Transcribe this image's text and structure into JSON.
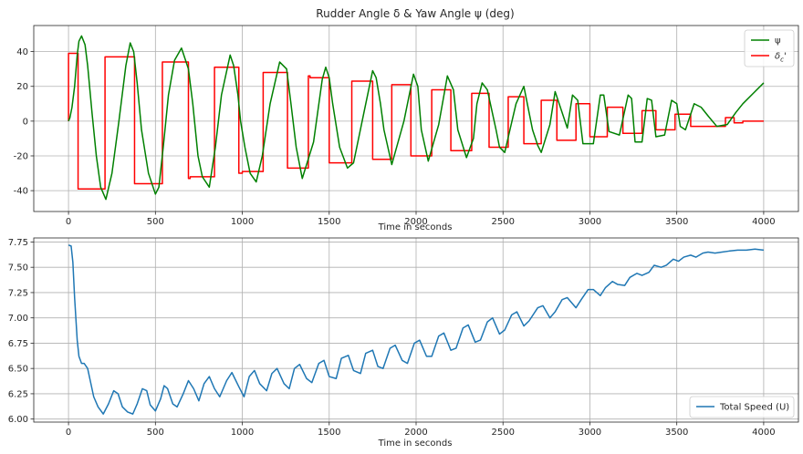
{
  "chart_data": [
    {
      "type": "line",
      "title": "Rudder Angle δ & Yaw Angle ψ (deg)",
      "xlabel": "Time in seconds",
      "ylabel": "",
      "xlim": [
        -200,
        4200
      ],
      "ylim": [
        -52,
        55
      ],
      "xticks": [
        0,
        500,
        1000,
        1500,
        2000,
        2500,
        3000,
        3500,
        4000
      ],
      "yticks": [
        -40,
        -20,
        0,
        20,
        40
      ],
      "grid": true,
      "legend": "top-right",
      "series": [
        {
          "name": "ψ",
          "color": "#008000",
          "x": [
            0,
            8,
            20,
            35,
            50,
            60,
            75,
            95,
            110,
            135,
            160,
            185,
            215,
            250,
            290,
            330,
            355,
            375,
            395,
            420,
            460,
            500,
            520,
            545,
            555,
            575,
            610,
            650,
            690,
            715,
            745,
            770,
            810,
            845,
            880,
            930,
            950,
            975,
            990,
            1015,
            1045,
            1080,
            1115,
            1160,
            1215,
            1255,
            1280,
            1310,
            1345,
            1410,
            1460,
            1480,
            1500,
            1520,
            1560,
            1605,
            1640,
            1700,
            1750,
            1770,
            1795,
            1815,
            1860,
            1930,
            1985,
            2010,
            2030,
            2070,
            2130,
            2180,
            2215,
            2240,
            2290,
            2330,
            2350,
            2380,
            2410,
            2460,
            2480,
            2510,
            2540,
            2575,
            2620,
            2670,
            2700,
            2720,
            2770,
            2800,
            2870,
            2900,
            2930,
            2960,
            3020,
            3060,
            3080,
            3110,
            3170,
            3220,
            3240,
            3260,
            3300,
            3330,
            3355,
            3380,
            3430,
            3470,
            3500,
            3520,
            3550,
            3600,
            3640,
            3680,
            3730,
            3790,
            3840,
            3880,
            3940,
            4000
          ],
          "values": [
            0,
            2,
            8,
            20,
            38,
            46,
            49,
            44,
            32,
            5,
            -20,
            -38,
            -45,
            -30,
            0,
            32,
            45,
            40,
            22,
            -5,
            -30,
            -42,
            -38,
            -15,
            -5,
            15,
            35,
            42,
            30,
            10,
            -20,
            -32,
            -38,
            -15,
            15,
            38,
            32,
            15,
            0,
            -15,
            -30,
            -35,
            -20,
            10,
            34,
            30,
            10,
            -15,
            -33,
            -12,
            24,
            31,
            25,
            10,
            -15,
            -27,
            -24,
            5,
            29,
            25,
            10,
            -5,
            -25,
            0,
            27,
            20,
            -5,
            -23,
            -2,
            26,
            18,
            -5,
            -21,
            -10,
            10,
            22,
            18,
            -5,
            -15,
            -18,
            -5,
            10,
            20,
            -5,
            -14,
            -18,
            -2,
            17,
            -4,
            15,
            12,
            -13,
            -13,
            15,
            15,
            -6,
            -8,
            15,
            13,
            -12,
            -12,
            13,
            12,
            -9,
            -8,
            12,
            10,
            -3,
            -5,
            10,
            8,
            3,
            -3,
            -2,
            5,
            10,
            16,
            22
          ]
        },
        {
          "name": "δ<sub>c</sub>'",
          "color": "#ff0000",
          "x": [
            0,
            0,
            55,
            55,
            210,
            210,
            380,
            380,
            540,
            540,
            690,
            690,
            700,
            700,
            840,
            840,
            980,
            980,
            1000,
            1000,
            1120,
            1120,
            1260,
            1260,
            1380,
            1380,
            1390,
            1390,
            1500,
            1500,
            1630,
            1630,
            1750,
            1750,
            1860,
            1860,
            1970,
            1970,
            2090,
            2090,
            2200,
            2200,
            2320,
            2320,
            2420,
            2420,
            2530,
            2530,
            2620,
            2620,
            2720,
            2720,
            2810,
            2810,
            2920,
            2920,
            3000,
            3000,
            3100,
            3100,
            3190,
            3190,
            3300,
            3300,
            3380,
            3380,
            3490,
            3490,
            3580,
            3580,
            3780,
            3780,
            3830,
            3830,
            3880,
            3880,
            3910,
            3910,
            4000
          ],
          "values": [
            0,
            39,
            39,
            -39,
            -39,
            37,
            37,
            -36,
            -36,
            34,
            34,
            -33,
            -33,
            -32,
            -32,
            31,
            31,
            -30,
            -30,
            -29,
            -29,
            28,
            28,
            -27,
            -27,
            26,
            26,
            25,
            25,
            -24,
            -24,
            23,
            23,
            -22,
            -22,
            21,
            21,
            -20,
            -20,
            18,
            18,
            -17,
            -17,
            16,
            16,
            -15,
            -15,
            14,
            14,
            -13,
            -13,
            12,
            12,
            -11,
            -11,
            10,
            10,
            -9,
            -9,
            8,
            8,
            -7,
            -7,
            6,
            6,
            -5,
            -5,
            4,
            4,
            -3,
            -3,
            2,
            2,
            -1,
            -1,
            0,
            0,
            0,
            0
          ]
        }
      ]
    },
    {
      "type": "line",
      "title": "",
      "xlabel": "Time in seconds",
      "ylabel": "",
      "xlim": [
        -200,
        4200
      ],
      "ylim": [
        5.97,
        7.79
      ],
      "xticks": [
        0,
        500,
        1000,
        1500,
        2000,
        2500,
        3000,
        3500,
        4000
      ],
      "yticks": [
        6.0,
        6.25,
        6.5,
        6.75,
        7.0,
        7.25,
        7.5,
        7.75
      ],
      "ytick_labels": [
        "6.00",
        "6.25",
        "6.50",
        "6.75",
        "7.00",
        "7.25",
        "7.50",
        "7.75"
      ],
      "grid": true,
      "legend": "bottom-right",
      "series": [
        {
          "name": "Total Speed (U)",
          "color": "#1f77b4",
          "x": [
            0,
            15,
            25,
            35,
            50,
            60,
            75,
            90,
            110,
            125,
            145,
            170,
            200,
            230,
            260,
            285,
            310,
            340,
            370,
            395,
            425,
            450,
            470,
            500,
            530,
            550,
            570,
            600,
            625,
            660,
            690,
            720,
            750,
            780,
            810,
            840,
            870,
            910,
            940,
            980,
            1010,
            1040,
            1070,
            1100,
            1140,
            1170,
            1200,
            1240,
            1270,
            1300,
            1330,
            1370,
            1400,
            1440,
            1470,
            1500,
            1540,
            1570,
            1610,
            1640,
            1680,
            1710,
            1750,
            1780,
            1810,
            1850,
            1880,
            1920,
            1950,
            1990,
            2020,
            2060,
            2090,
            2130,
            2160,
            2200,
            2230,
            2270,
            2300,
            2340,
            2370,
            2410,
            2440,
            2480,
            2510,
            2550,
            2580,
            2620,
            2650,
            2700,
            2730,
            2770,
            2800,
            2840,
            2870,
            2920,
            2950,
            2990,
            3020,
            3060,
            3090,
            3130,
            3160,
            3200,
            3230,
            3270,
            3300,
            3340,
            3370,
            3410,
            3440,
            3480,
            3510,
            3540,
            3580,
            3610,
            3650,
            3680,
            3720,
            3760,
            3800,
            3850,
            3900,
            3950,
            4000
          ],
          "values": [
            7.72,
            7.71,
            7.55,
            7.2,
            6.78,
            6.62,
            6.55,
            6.55,
            6.5,
            6.38,
            6.22,
            6.12,
            6.05,
            6.15,
            6.28,
            6.25,
            6.12,
            6.07,
            6.05,
            6.15,
            6.3,
            6.28,
            6.14,
            6.08,
            6.2,
            6.33,
            6.3,
            6.15,
            6.12,
            6.25,
            6.38,
            6.3,
            6.18,
            6.35,
            6.42,
            6.3,
            6.22,
            6.38,
            6.46,
            6.32,
            6.22,
            6.42,
            6.48,
            6.35,
            6.28,
            6.45,
            6.5,
            6.35,
            6.3,
            6.5,
            6.54,
            6.4,
            6.36,
            6.55,
            6.58,
            6.42,
            6.4,
            6.6,
            6.63,
            6.48,
            6.45,
            6.65,
            6.68,
            6.52,
            6.5,
            6.7,
            6.73,
            6.58,
            6.55,
            6.75,
            6.78,
            6.62,
            6.62,
            6.82,
            6.85,
            6.68,
            6.7,
            6.9,
            6.93,
            6.76,
            6.78,
            6.96,
            7.0,
            6.84,
            6.88,
            7.03,
            7.06,
            6.92,
            6.97,
            7.1,
            7.12,
            7.0,
            7.06,
            7.18,
            7.2,
            7.1,
            7.18,
            7.28,
            7.28,
            7.22,
            7.3,
            7.36,
            7.33,
            7.32,
            7.4,
            7.44,
            7.42,
            7.45,
            7.52,
            7.5,
            7.52,
            7.58,
            7.56,
            7.6,
            7.62,
            7.6,
            7.64,
            7.65,
            7.64,
            7.65,
            7.66,
            7.67,
            7.67,
            7.68,
            7.67
          ]
        }
      ]
    }
  ]
}
